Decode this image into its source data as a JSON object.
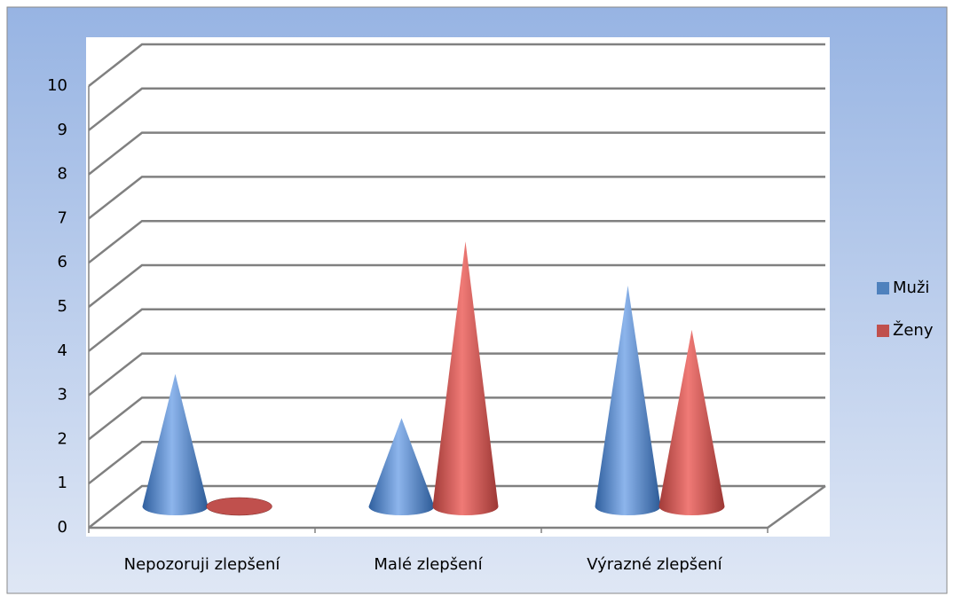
{
  "chart_data": {
    "type": "cone3d",
    "categories": [
      "Nepozoruji zlepšení",
      "Malé zlepšení",
      "Výrazné zlepšení"
    ],
    "series": [
      {
        "name": "Muži",
        "color": "#4f81bd",
        "values": [
          3,
          2,
          5
        ]
      },
      {
        "name": "Ženy",
        "color": "#c0504d",
        "values": [
          0,
          6,
          4
        ]
      }
    ],
    "ylim": [
      0,
      10
    ],
    "yticks": [
      0,
      1,
      2,
      3,
      4,
      5,
      6,
      7,
      8,
      9,
      10
    ],
    "grid": true,
    "legend": "right"
  }
}
